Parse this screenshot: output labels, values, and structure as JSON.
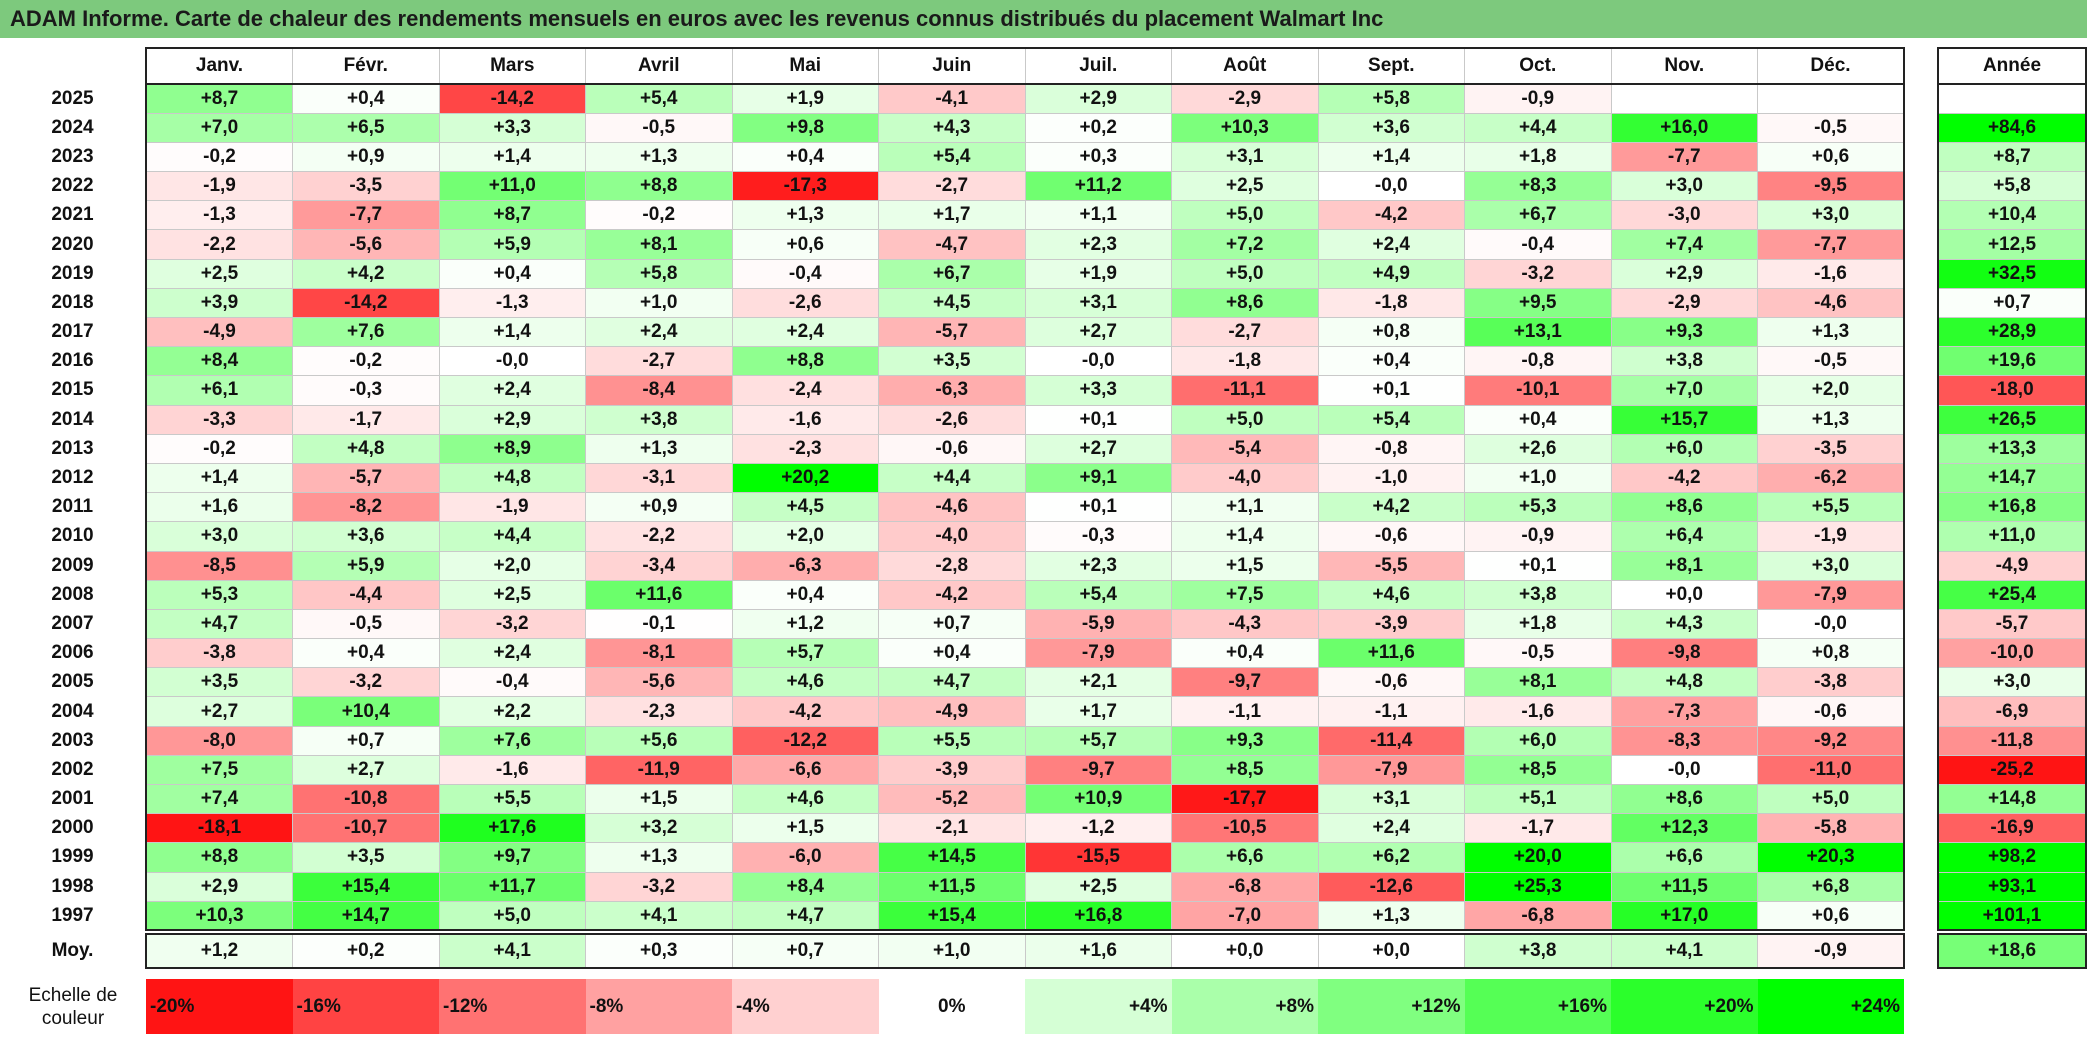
{
  "title": "ADAM Informe. Carte de chaleur des rendements mensuels en euros avec les revenus connus distribués du placement Walmart Inc",
  "chart_data": {
    "type": "heatmap",
    "title": "ADAM Informe. Carte de chaleur des rendements mensuels en euros avec les revenus connus distribués du placement Walmart Inc",
    "columns": [
      "Janv.",
      "Févr.",
      "Mars",
      "Avril",
      "Mai",
      "Juin",
      "Juil.",
      "Août",
      "Sept.",
      "Oct.",
      "Nov.",
      "Déc."
    ],
    "year_column_label": "Année",
    "rows": [
      {
        "year": "2025",
        "values": [
          "+8,7",
          "+0,4",
          "-14,2",
          "+5,4",
          "+1,9",
          "-4,1",
          "+2,9",
          "-2,9",
          "+5,8",
          "-0,9",
          "",
          ""
        ],
        "annual": ""
      },
      {
        "year": "2024",
        "values": [
          "+7,0",
          "+6,5",
          "+3,3",
          "-0,5",
          "+9,8",
          "+4,3",
          "+0,2",
          "+10,3",
          "+3,6",
          "+4,4",
          "+16,0",
          "-0,5"
        ],
        "annual": "+84,6"
      },
      {
        "year": "2023",
        "values": [
          "-0,2",
          "+0,9",
          "+1,4",
          "+1,3",
          "+0,4",
          "+5,4",
          "+0,3",
          "+3,1",
          "+1,4",
          "+1,8",
          "-7,7",
          "+0,6"
        ],
        "annual": "+8,7"
      },
      {
        "year": "2022",
        "values": [
          "-1,9",
          "-3,5",
          "+11,0",
          "+8,8",
          "-17,3",
          "-2,7",
          "+11,2",
          "+2,5",
          "-0,0",
          "+8,3",
          "+3,0",
          "-9,5"
        ],
        "annual": "+5,8"
      },
      {
        "year": "2021",
        "values": [
          "-1,3",
          "-7,7",
          "+8,7",
          "-0,2",
          "+1,3",
          "+1,7",
          "+1,1",
          "+5,0",
          "-4,2",
          "+6,7",
          "-3,0",
          "+3,0"
        ],
        "annual": "+10,4"
      },
      {
        "year": "2020",
        "values": [
          "-2,2",
          "-5,6",
          "+5,9",
          "+8,1",
          "+0,6",
          "-4,7",
          "+2,3",
          "+7,2",
          "+2,4",
          "-0,4",
          "+7,4",
          "-7,7"
        ],
        "annual": "+12,5"
      },
      {
        "year": "2019",
        "values": [
          "+2,5",
          "+4,2",
          "+0,4",
          "+5,8",
          "-0,4",
          "+6,7",
          "+1,9",
          "+5,0",
          "+4,9",
          "-3,2",
          "+2,9",
          "-1,6"
        ],
        "annual": "+32,5"
      },
      {
        "year": "2018",
        "values": [
          "+3,9",
          "-14,2",
          "-1,3",
          "+1,0",
          "-2,6",
          "+4,5",
          "+3,1",
          "+8,6",
          "-1,8",
          "+9,5",
          "-2,9",
          "-4,6"
        ],
        "annual": "+0,7"
      },
      {
        "year": "2017",
        "values": [
          "-4,9",
          "+7,6",
          "+1,4",
          "+2,4",
          "+2,4",
          "-5,7",
          "+2,7",
          "-2,7",
          "+0,8",
          "+13,1",
          "+9,3",
          "+1,3"
        ],
        "annual": "+28,9"
      },
      {
        "year": "2016",
        "values": [
          "+8,4",
          "-0,2",
          "-0,0",
          "-2,7",
          "+8,8",
          "+3,5",
          "-0,0",
          "-1,8",
          "+0,4",
          "-0,8",
          "+3,8",
          "-0,5"
        ],
        "annual": "+19,6"
      },
      {
        "year": "2015",
        "values": [
          "+6,1",
          "-0,3",
          "+2,4",
          "-8,4",
          "-2,4",
          "-6,3",
          "+3,3",
          "-11,1",
          "+0,1",
          "-10,1",
          "+7,0",
          "+2,0"
        ],
        "annual": "-18,0"
      },
      {
        "year": "2014",
        "values": [
          "-3,3",
          "-1,7",
          "+2,9",
          "+3,8",
          "-1,6",
          "-2,6",
          "+0,1",
          "+5,0",
          "+5,4",
          "+0,4",
          "+15,7",
          "+1,3"
        ],
        "annual": "+26,5"
      },
      {
        "year": "2013",
        "values": [
          "-0,2",
          "+4,8",
          "+8,9",
          "+1,3",
          "-2,3",
          "-0,6",
          "+2,7",
          "-5,4",
          "-0,8",
          "+2,6",
          "+6,0",
          "-3,5"
        ],
        "annual": "+13,3"
      },
      {
        "year": "2012",
        "values": [
          "+1,4",
          "-5,7",
          "+4,8",
          "-3,1",
          "+20,2",
          "+4,4",
          "+9,1",
          "-4,0",
          "-1,0",
          "+1,0",
          "-4,2",
          "-6,2"
        ],
        "annual": "+14,7"
      },
      {
        "year": "2011",
        "values": [
          "+1,6",
          "-8,2",
          "-1,9",
          "+0,9",
          "+4,5",
          "-4,6",
          "+0,1",
          "+1,1",
          "+4,2",
          "+5,3",
          "+8,6",
          "+5,5"
        ],
        "annual": "+16,8"
      },
      {
        "year": "2010",
        "values": [
          "+3,0",
          "+3,6",
          "+4,4",
          "-2,2",
          "+2,0",
          "-4,0",
          "-0,3",
          "+1,4",
          "-0,6",
          "-0,9",
          "+6,4",
          "-1,9"
        ],
        "annual": "+11,0"
      },
      {
        "year": "2009",
        "values": [
          "-8,5",
          "+5,9",
          "+2,0",
          "-3,4",
          "-6,3",
          "-2,8",
          "+2,3",
          "+1,5",
          "-5,5",
          "+0,1",
          "+8,1",
          "+3,0"
        ],
        "annual": "-4,9"
      },
      {
        "year": "2008",
        "values": [
          "+5,3",
          "-4,4",
          "+2,5",
          "+11,6",
          "+0,4",
          "-4,2",
          "+5,4",
          "+7,5",
          "+4,6",
          "+3,8",
          "+0,0",
          "-7,9"
        ],
        "annual": "+25,4"
      },
      {
        "year": "2007",
        "values": [
          "+4,7",
          "-0,5",
          "-3,2",
          "-0,1",
          "+1,2",
          "+0,7",
          "-5,9",
          "-4,3",
          "-3,9",
          "+1,8",
          "+4,3",
          "-0,0"
        ],
        "annual": "-5,7"
      },
      {
        "year": "2006",
        "values": [
          "-3,8",
          "+0,4",
          "+2,4",
          "-8,1",
          "+5,7",
          "+0,4",
          "-7,9",
          "+0,4",
          "+11,6",
          "-0,5",
          "-9,8",
          "+0,8"
        ],
        "annual": "-10,0"
      },
      {
        "year": "2005",
        "values": [
          "+3,5",
          "-3,2",
          "-0,4",
          "-5,6",
          "+4,6",
          "+4,7",
          "+2,1",
          "-9,7",
          "-0,6",
          "+8,1",
          "+4,8",
          "-3,8"
        ],
        "annual": "+3,0"
      },
      {
        "year": "2004",
        "values": [
          "+2,7",
          "+10,4",
          "+2,2",
          "-2,3",
          "-4,2",
          "-4,9",
          "+1,7",
          "-1,1",
          "-1,1",
          "-1,6",
          "-7,3",
          "-0,6"
        ],
        "annual": "-6,9"
      },
      {
        "year": "2003",
        "values": [
          "-8,0",
          "+0,7",
          "+7,6",
          "+5,6",
          "-12,2",
          "+5,5",
          "+5,7",
          "+9,3",
          "-11,4",
          "+6,0",
          "-8,3",
          "-9,2"
        ],
        "annual": "-11,8"
      },
      {
        "year": "2002",
        "values": [
          "+7,5",
          "+2,7",
          "-1,6",
          "-11,9",
          "-6,6",
          "-3,9",
          "-9,7",
          "+8,5",
          "-7,9",
          "+8,5",
          "-0,0",
          "-11,0"
        ],
        "annual": "-25,2"
      },
      {
        "year": "2001",
        "values": [
          "+7,4",
          "-10,8",
          "+5,5",
          "+1,5",
          "+4,6",
          "-5,2",
          "+10,9",
          "-17,7",
          "+3,1",
          "+5,1",
          "+8,6",
          "+5,0"
        ],
        "annual": "+14,8"
      },
      {
        "year": "2000",
        "values": [
          "-18,1",
          "-10,7",
          "+17,6",
          "+3,2",
          "+1,5",
          "-2,1",
          "-1,2",
          "-10,5",
          "+2,4",
          "-1,7",
          "+12,3",
          "-5,8"
        ],
        "annual": "-16,9"
      },
      {
        "year": "1999",
        "values": [
          "+8,8",
          "+3,5",
          "+9,7",
          "+1,3",
          "-6,0",
          "+14,5",
          "-15,5",
          "+6,6",
          "+6,2",
          "+20,0",
          "+6,6",
          "+20,3"
        ],
        "annual": "+98,2"
      },
      {
        "year": "1998",
        "values": [
          "+2,9",
          "+15,4",
          "+11,7",
          "-3,2",
          "+8,4",
          "+11,5",
          "+2,5",
          "-6,8",
          "-12,6",
          "+25,3",
          "+11,5",
          "+6,8"
        ],
        "annual": "+93,1"
      },
      {
        "year": "1997",
        "values": [
          "+10,3",
          "+14,7",
          "+5,0",
          "+4,1",
          "+4,7",
          "+15,4",
          "+16,8",
          "-7,0",
          "+1,3",
          "-6,8",
          "+17,0",
          "+0,6"
        ],
        "annual": "+101,1"
      }
    ],
    "average": {
      "label": "Moy.",
      "values": [
        "+1,2",
        "+0,2",
        "+4,1",
        "+0,3",
        "+0,7",
        "+1,0",
        "+1,6",
        "+0,0",
        "+0,0",
        "+3,8",
        "+4,1",
        "-0,9"
      ],
      "annual": "+18,6"
    },
    "color_scale": {
      "label": "Echelle de couleur",
      "stops": [
        "-20%",
        "-16%",
        "-12%",
        "-8%",
        "-4%",
        "0%",
        "+4%",
        "+8%",
        "+12%",
        "+16%",
        "+20%",
        "+24%"
      ],
      "negative_color": "#ff0000",
      "neutral_color": "#ffffff",
      "positive_color": "#00ff00"
    }
  }
}
